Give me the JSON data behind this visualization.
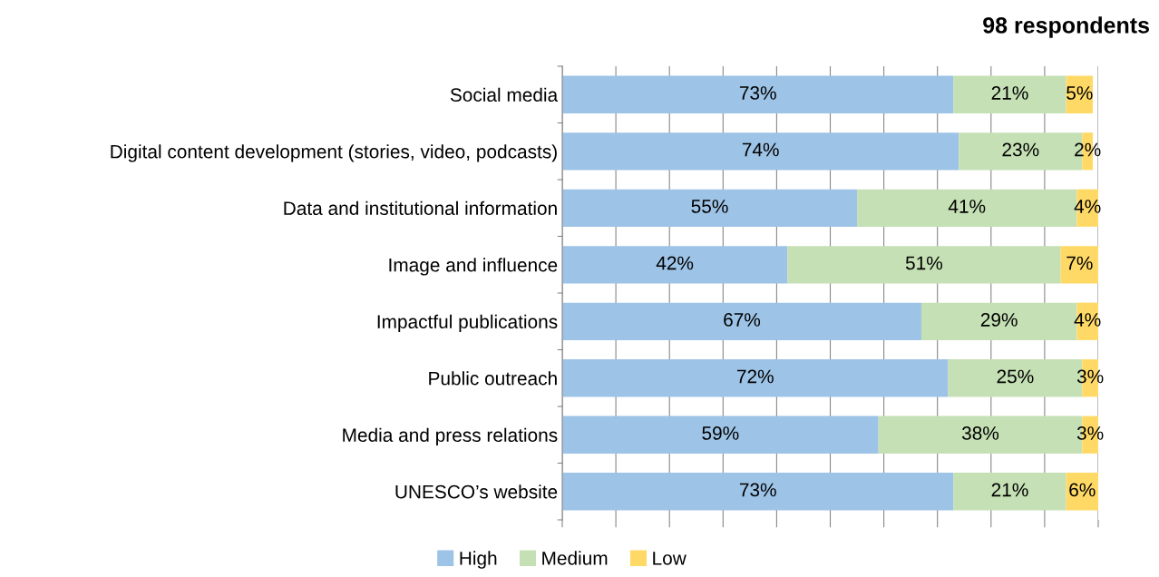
{
  "chart_data": {
    "type": "bar",
    "orientation": "horizontal",
    "stacked": true,
    "title": "98 respondents",
    "categories": [
      "Social media",
      "Digital content development (stories, video, podcasts)",
      "Data and institutional information",
      "Image and influence",
      "Impactful publications",
      "Public outreach",
      "Media and press relations",
      "UNESCO’s website"
    ],
    "series": [
      {
        "name": "High",
        "color": "#9dc3e6",
        "values": [
          73,
          74,
          55,
          42,
          67,
          72,
          59,
          73
        ],
        "value_labels": [
          "73%",
          "74%",
          "55%",
          "42%",
          "67%",
          "72%",
          "59%",
          "73%"
        ]
      },
      {
        "name": "Medium",
        "color": "#c5e0b4",
        "values": [
          21,
          23,
          41,
          51,
          29,
          25,
          38,
          21
        ],
        "value_labels": [
          "21%",
          "23%",
          "41%",
          "51%",
          "29%",
          "25%",
          "38%",
          "21%"
        ]
      },
      {
        "name": "Low",
        "color": "#ffd966",
        "values": [
          5,
          2,
          4,
          7,
          4,
          3,
          3,
          6
        ],
        "value_labels": [
          "5%",
          "2%",
          "4%",
          "7%",
          "4%",
          "3%",
          "3%",
          "6%"
        ]
      }
    ],
    "xlim": [
      0,
      100
    ],
    "xticks": [
      {
        "value": 0,
        "label": null
      },
      {
        "value": 10,
        "label": null
      },
      {
        "value": 20,
        "label": null
      },
      {
        "value": 30,
        "label": null
      },
      {
        "value": 40,
        "label": null
      },
      {
        "value": 50,
        "label": null
      },
      {
        "value": 60,
        "label": null
      },
      {
        "value": 70,
        "label": null
      },
      {
        "value": 80,
        "label": null
      },
      {
        "value": 90,
        "label": null
      },
      {
        "value": 100,
        "label": null
      }
    ],
    "tick_labels": "y",
    "grid": "x",
    "legend": "bottom"
  }
}
